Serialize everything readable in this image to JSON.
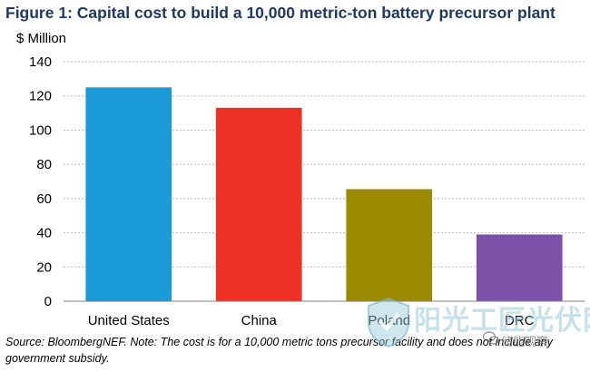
{
  "figure": {
    "title": "Figure 1: Capital cost to build a 10,000 metric-ton battery precursor plant",
    "source": "Source: BloombergNEF. Note: The cost is for a 10,000 metric tons precursor facility and does not include any government subsidy."
  },
  "chart_data": {
    "type": "bar",
    "title": "Figure 1: Capital cost to build a 10,000 metric-ton battery precursor plant",
    "ylabel": "$ Million",
    "xlabel": "",
    "categories": [
      "United States",
      "China",
      "Poland",
      "DRC"
    ],
    "values": [
      125,
      113,
      65.5,
      39
    ],
    "colors": [
      "#1a9ad6",
      "#ee3124",
      "#9c8a00",
      "#7b52a8"
    ],
    "ylim": [
      0,
      140
    ],
    "yticks": [
      0,
      20,
      40,
      60,
      80,
      100,
      120,
      140
    ],
    "grid": true,
    "legend": "none"
  },
  "watermark": {
    "text": "阳光工匠光伏网",
    "sub": "储能观察"
  }
}
